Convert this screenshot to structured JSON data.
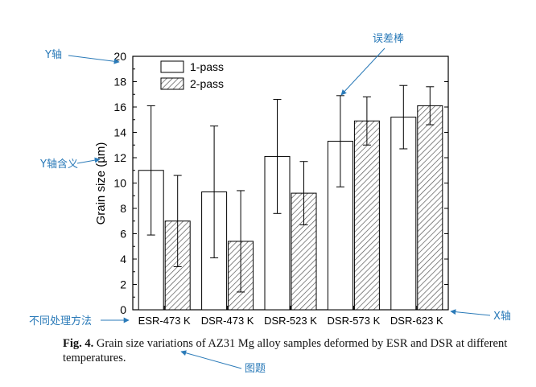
{
  "chart_data": {
    "type": "bar",
    "categories": [
      "ESR-473 K",
      "DSR-473 K",
      "DSR-523 K",
      "DSR-573 K",
      "DSR-623 K"
    ],
    "series": [
      {
        "name": "1-pass",
        "values": [
          11.0,
          9.3,
          12.1,
          13.3,
          15.2
        ],
        "errors": [
          5.1,
          5.2,
          4.5,
          3.6,
          2.5
        ]
      },
      {
        "name": "2-pass",
        "values": [
          7.0,
          5.4,
          9.2,
          14.9,
          16.1
        ],
        "errors": [
          3.6,
          4.0,
          2.5,
          1.9,
          1.5
        ]
      }
    ],
    "ylabel": "Grain size (µm)",
    "xlabel": "",
    "ylim": [
      0,
      20
    ],
    "yticks": [
      0,
      2,
      4,
      6,
      8,
      10,
      12,
      14,
      16,
      18,
      20
    ],
    "legend": "top-left"
  },
  "caption": {
    "label": "Fig. 4.",
    "text": " Grain size variations of AZ31 Mg alloy samples deformed by ESR and DSR at different temperatures."
  },
  "annotations": {
    "error_bar": "误差棒",
    "y_axis": "Y轴",
    "y_meaning": "Y轴含义",
    "categories": "不同处理方法",
    "x_axis": "X轴",
    "figure_title": "图题"
  },
  "colors": {
    "annotation": "#2a7ab8",
    "bar_fill_1pass": "#ffffff",
    "bar_hatch_2pass": "#555555"
  }
}
